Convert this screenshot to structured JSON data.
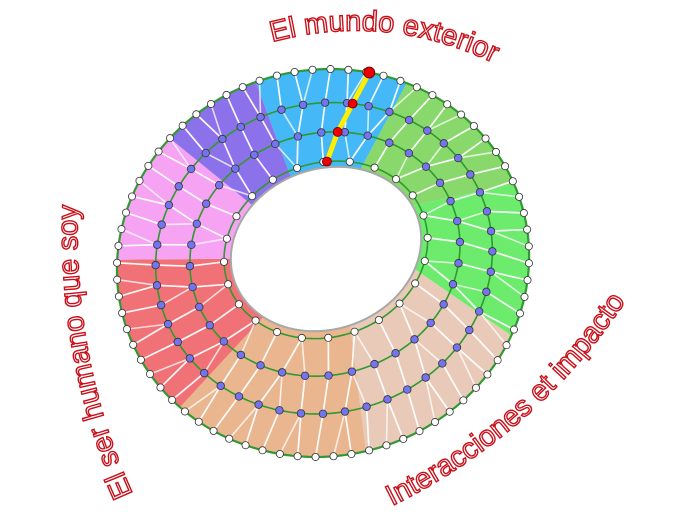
{
  "labels": {
    "top": "El mundo exterior",
    "left": "El ser humano que soy",
    "right": "Interacciones et impacto"
  },
  "sectors": [
    {
      "name": "blue",
      "color": "#45b8f7",
      "from": -95,
      "to": -52
    },
    {
      "name": "light-green",
      "color": "#88d86c",
      "from": -52,
      "to": -8
    },
    {
      "name": "green",
      "color": "#6deb6d",
      "from": -8,
      "to": 38
    },
    {
      "name": "peach",
      "color": "#e9cab8",
      "from": 38,
      "to": 92
    },
    {
      "name": "tan",
      "color": "#e9b690",
      "from": 92,
      "to": 148
    },
    {
      "name": "red",
      "color": "#f07276",
      "from": 148,
      "to": 197
    },
    {
      "name": "pink",
      "color": "#f5a3f2",
      "from": 197,
      "to": 236
    },
    {
      "name": "purple",
      "color": "#8c72ea",
      "from": 236,
      "to": 265
    }
  ],
  "colors": {
    "ring": "#2f9a2f",
    "node_white": "#ffffff",
    "node_purple": "#7474f0",
    "highlight_node": "#ee0000",
    "highlight_path": "#ffee00",
    "label_outline": "#c8101a"
  }
}
